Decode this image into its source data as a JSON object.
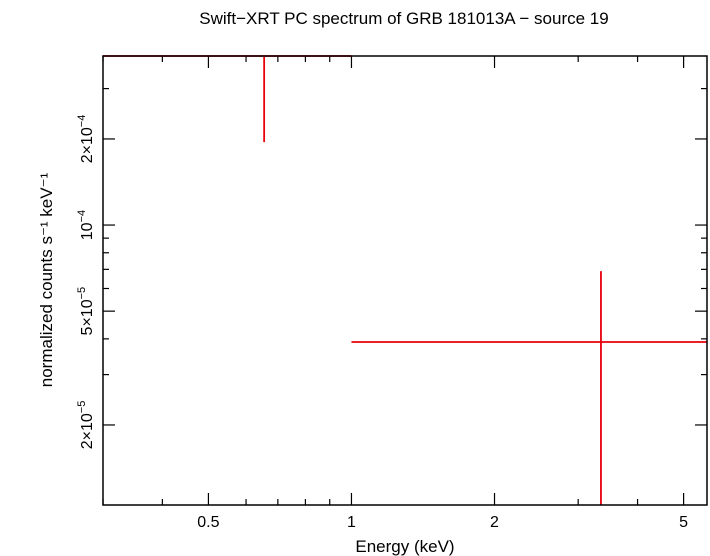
{
  "chart_data": {
    "type": "scatter",
    "title": "Swift−XRT PC spectrum of GRB 181013A − source 19",
    "xlabel": "Energy (keV)",
    "ylabel": "normalized counts s⁻¹ keV⁻¹",
    "x_scale": "log",
    "y_scale": "log",
    "xlim": [
      0.3,
      5.6
    ],
    "ylim": [
      1.05e-05,
      0.00039
    ],
    "x_ticks": [
      {
        "value": 0.5,
        "label": "0.5"
      },
      {
        "value": 1,
        "label": "1"
      },
      {
        "value": 2,
        "label": "2"
      },
      {
        "value": 5,
        "label": "5"
      }
    ],
    "y_ticks": [
      {
        "value": 2e-05,
        "mantissa": "2×10",
        "exponent": "−5"
      },
      {
        "value": 5e-05,
        "mantissa": "5×10",
        "exponent": "−5"
      },
      {
        "value": 0.0001,
        "mantissa": "10",
        "exponent": "−4"
      },
      {
        "value": 0.0002,
        "mantissa": "2×10",
        "exponent": "−4"
      }
    ],
    "series": [
      {
        "color": "#e8000b",
        "points": [
          {
            "x_lo": 0.3,
            "x_hi": 1.0,
            "x": 0.655,
            "y": 0.00039,
            "y_lo": 0.000195,
            "y_hi": 0.00039
          },
          {
            "x_lo": 1.0,
            "x_hi": 5.6,
            "x": 3.35,
            "y": 3.9e-05,
            "y_lo": 1.05e-05,
            "y_hi": 6.9e-05
          }
        ]
      }
    ]
  }
}
